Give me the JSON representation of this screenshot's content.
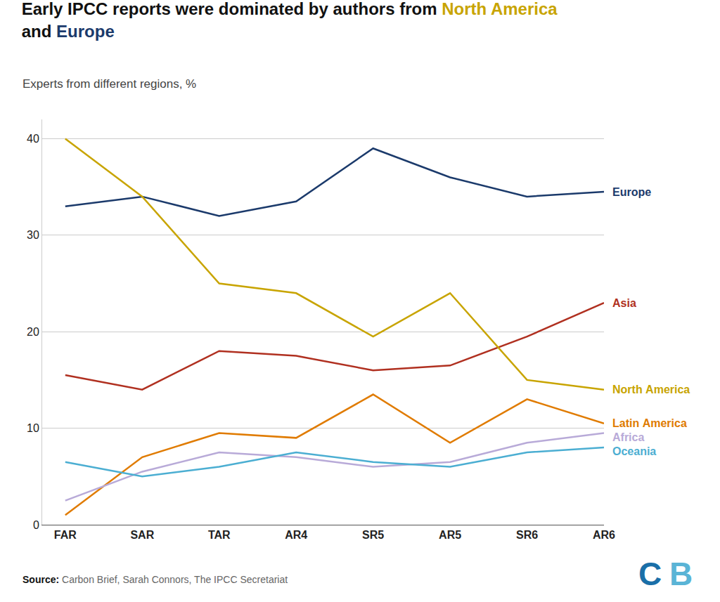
{
  "chart_data": {
    "type": "line",
    "title": "Early IPCC reports were dominated by authors from North America\nand Europe",
    "subtitle": "Experts from different regions, %",
    "categories": [
      "FAR",
      "SAR",
      "TAR",
      "AR4",
      "SR5",
      "AR5",
      "SR6",
      "AR6"
    ],
    "series": [
      {
        "name": "Europe",
        "color": "#1b3a6b",
        "values": [
          33.0,
          34.0,
          32.0,
          33.5,
          39.0,
          36.0,
          34.0,
          34.5
        ]
      },
      {
        "name": "Asia",
        "color": "#b03020",
        "values": [
          15.5,
          14.0,
          18.0,
          17.5,
          16.0,
          16.5,
          19.5,
          23.0
        ]
      },
      {
        "name": "North America",
        "color": "#c8a400",
        "values": [
          40.0,
          34.0,
          25.0,
          24.0,
          19.5,
          24.0,
          15.0,
          14.0
        ]
      },
      {
        "name": "Latin America",
        "color": "#e07b00",
        "values": [
          1.0,
          7.0,
          9.5,
          9.0,
          13.5,
          8.5,
          13.0,
          10.5
        ]
      },
      {
        "name": "Africa",
        "color": "#b8aad8",
        "values": [
          2.5,
          5.5,
          7.5,
          7.0,
          6.0,
          6.5,
          8.5,
          9.5
        ]
      },
      {
        "name": "Oceania",
        "color": "#4baed2",
        "values": [
          6.5,
          5.0,
          6.0,
          7.5,
          6.5,
          6.0,
          7.5,
          8.0
        ]
      }
    ],
    "ylim": [
      0,
      42
    ],
    "yticks": [
      0,
      10,
      20,
      30,
      40
    ],
    "grid": true,
    "annotations": [
      {
        "text": "Source: Carbon Brief, Sarah Connors, The IPCC Secretariat"
      },
      {
        "text": "C",
        "color": "#1a6fa8"
      },
      {
        "text": "B",
        "color": "#5ab4d6"
      }
    ]
  }
}
